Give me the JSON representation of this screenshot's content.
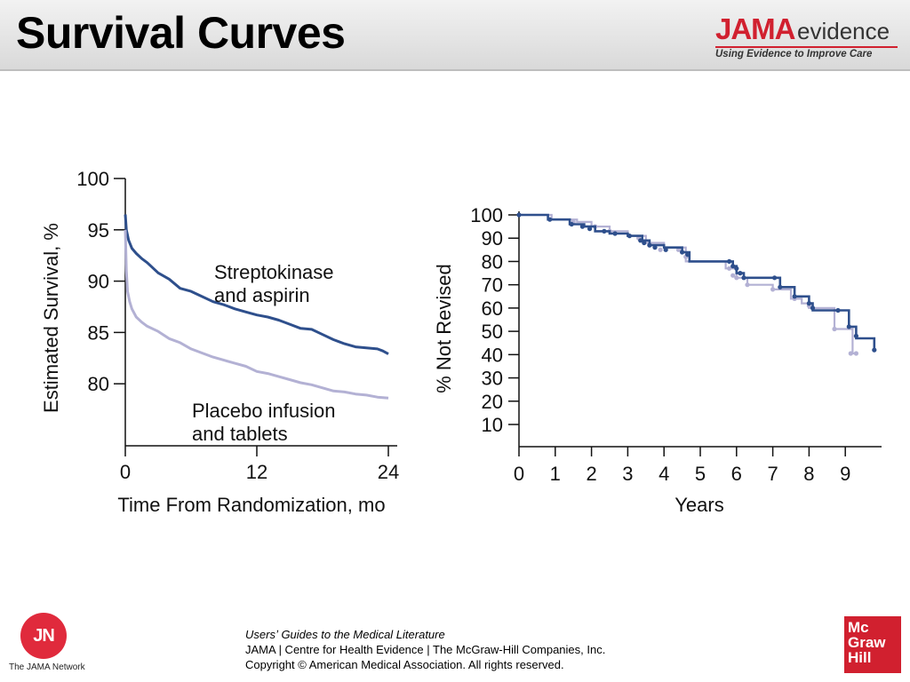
{
  "slide": {
    "title": "Survival Curves",
    "logo": {
      "brand": "JAMA",
      "word": "evidence",
      "tagline": "Using Evidence to Improve Care"
    }
  },
  "chart_data": [
    {
      "type": "line",
      "ylabel": "Estimated Survival, %",
      "xlabel": "Time From Randomization, mo",
      "xlim": [
        0,
        24
      ],
      "ylim": [
        75,
        100
      ],
      "xticks": [
        0,
        12,
        24
      ],
      "yticks": [
        80,
        85,
        90,
        95,
        100
      ],
      "series": [
        {
          "name": "Streptokinase and aspirin",
          "color": "#2e4f8c",
          "x": [
            0,
            0.1,
            0.3,
            0.6,
            1,
            1.5,
            2,
            3,
            4,
            5,
            6,
            7,
            8,
            9,
            10,
            11,
            12,
            13,
            14,
            15,
            16,
            17,
            18,
            19,
            20,
            21,
            22,
            23,
            23.5,
            24
          ],
          "y": [
            96.5,
            95,
            94,
            93.2,
            92.7,
            92.2,
            91.8,
            90.8,
            90.2,
            89.3,
            89,
            88.5,
            88,
            87.7,
            87.3,
            87,
            86.7,
            86.5,
            86.2,
            85.8,
            85.4,
            85.3,
            84.8,
            84.3,
            83.9,
            83.6,
            83.5,
            83.4,
            83.2,
            82.9
          ]
        },
        {
          "name": "Placebo infusion and tablets",
          "color": "#b3b1d4",
          "x": [
            0,
            0.1,
            0.2,
            0.4,
            0.6,
            1,
            1.5,
            2,
            3,
            4,
            5,
            6,
            7,
            8,
            9,
            10,
            11,
            12,
            13,
            14,
            15,
            16,
            17,
            18,
            19,
            20,
            21,
            22,
            23,
            24
          ],
          "y": [
            95,
            91,
            89,
            88,
            87.3,
            86.5,
            86,
            85.6,
            85.1,
            84.4,
            84,
            83.4,
            83,
            82.6,
            82.3,
            82,
            81.7,
            81.2,
            81,
            80.7,
            80.4,
            80.1,
            79.9,
            79.6,
            79.3,
            79.2,
            79,
            78.9,
            78.7,
            78.6
          ]
        }
      ],
      "annotations": [
        {
          "text_lines": [
            "Streptokinase",
            "and aspirin"
          ]
        },
        {
          "text_lines": [
            "Placebo infusion",
            "and tablets"
          ]
        }
      ]
    },
    {
      "type": "line",
      "ylabel": "% Not Revised",
      "xlabel": "Years",
      "xlim": [
        0,
        10
      ],
      "ylim": [
        0,
        100
      ],
      "xticks": [
        0,
        1,
        2,
        3,
        4,
        5,
        6,
        7,
        8,
        9
      ],
      "yticks": [
        10,
        20,
        30,
        40,
        50,
        60,
        70,
        80,
        90,
        100
      ],
      "series": [
        {
          "color": "#b3b1d4",
          "x": [
            0,
            0.9,
            1.6,
            2.0,
            2.5,
            3.0,
            3.5,
            4.0,
            4.6,
            5.7,
            6.0,
            6.3,
            7.0,
            7.5,
            7.8,
            8.0,
            8.7,
            9.0,
            9.2,
            9.3
          ],
          "y": [
            100,
            98,
            97,
            95,
            93,
            91,
            88,
            86,
            80,
            77,
            73,
            70,
            68,
            64,
            62,
            60,
            51,
            51,
            40.5,
            40.5
          ],
          "markers": [
            [
              1.5,
              97
            ],
            [
              2.1,
              95
            ],
            [
              2.5,
              93
            ],
            [
              3.3,
              90
            ],
            [
              3.6,
              87
            ],
            [
              3.9,
              85
            ],
            [
              4.4,
              85
            ],
            [
              4.6,
              82
            ],
            [
              5.8,
              77
            ],
            [
              5.9,
              74
            ],
            [
              6.0,
              73
            ],
            [
              6.3,
              70
            ],
            [
              7.0,
              68
            ],
            [
              7.6,
              64
            ],
            [
              8.0,
              61
            ],
            [
              8.7,
              51
            ],
            [
              9.15,
              40.5
            ],
            [
              9.3,
              40.5
            ]
          ]
        },
        {
          "color": "#2e4f8c",
          "x": [
            0,
            0.8,
            1.4,
            1.8,
            2.1,
            2.5,
            3.0,
            3.4,
            3.6,
            4.0,
            4.5,
            4.7,
            5.8,
            5.9,
            6.0,
            6.2,
            7.0,
            7.2,
            7.6,
            8.0,
            8.1,
            8.8,
            9.1,
            9.3,
            9.8
          ],
          "y": [
            100,
            98,
            96,
            95,
            93,
            92,
            91,
            89,
            87,
            86,
            84,
            80,
            80,
            78,
            75,
            73,
            73,
            69,
            65,
            62,
            59,
            59,
            52,
            47,
            42
          ],
          "markers": [
            [
              0,
              100
            ],
            [
              0.85,
              98
            ],
            [
              1.45,
              96
            ],
            [
              1.75,
              95
            ],
            [
              1.95,
              94
            ],
            [
              2.35,
              93
            ],
            [
              2.65,
              92
            ],
            [
              3.05,
              91
            ],
            [
              3.35,
              89
            ],
            [
              3.45,
              88
            ],
            [
              3.6,
              87
            ],
            [
              3.75,
              86
            ],
            [
              4.05,
              85
            ],
            [
              4.5,
              84
            ],
            [
              4.65,
              83
            ],
            [
              5.8,
              80
            ],
            [
              5.9,
              78
            ],
            [
              6.0,
              77
            ],
            [
              6.1,
              75
            ],
            [
              6.2,
              73
            ],
            [
              7.05,
              73
            ],
            [
              7.2,
              69
            ],
            [
              7.6,
              65
            ],
            [
              8.0,
              62
            ],
            [
              8.1,
              60
            ],
            [
              8.8,
              59
            ],
            [
              9.1,
              52
            ],
            [
              9.3,
              48
            ],
            [
              9.8,
              42
            ]
          ]
        }
      ]
    }
  ],
  "footer": {
    "line1": "Usersʼ Guides to the Medical Literature",
    "line2": "JAMA | Centre for Health Evidence | The McGraw-Hill Companies, Inc.",
    "line3": "Copyright © American Medical Association. All rights reserved.",
    "jn_logo_text": "JN",
    "jn_caption": "The JAMA Network",
    "mcgraw": [
      "Mc",
      "Graw",
      "Hill"
    ]
  }
}
